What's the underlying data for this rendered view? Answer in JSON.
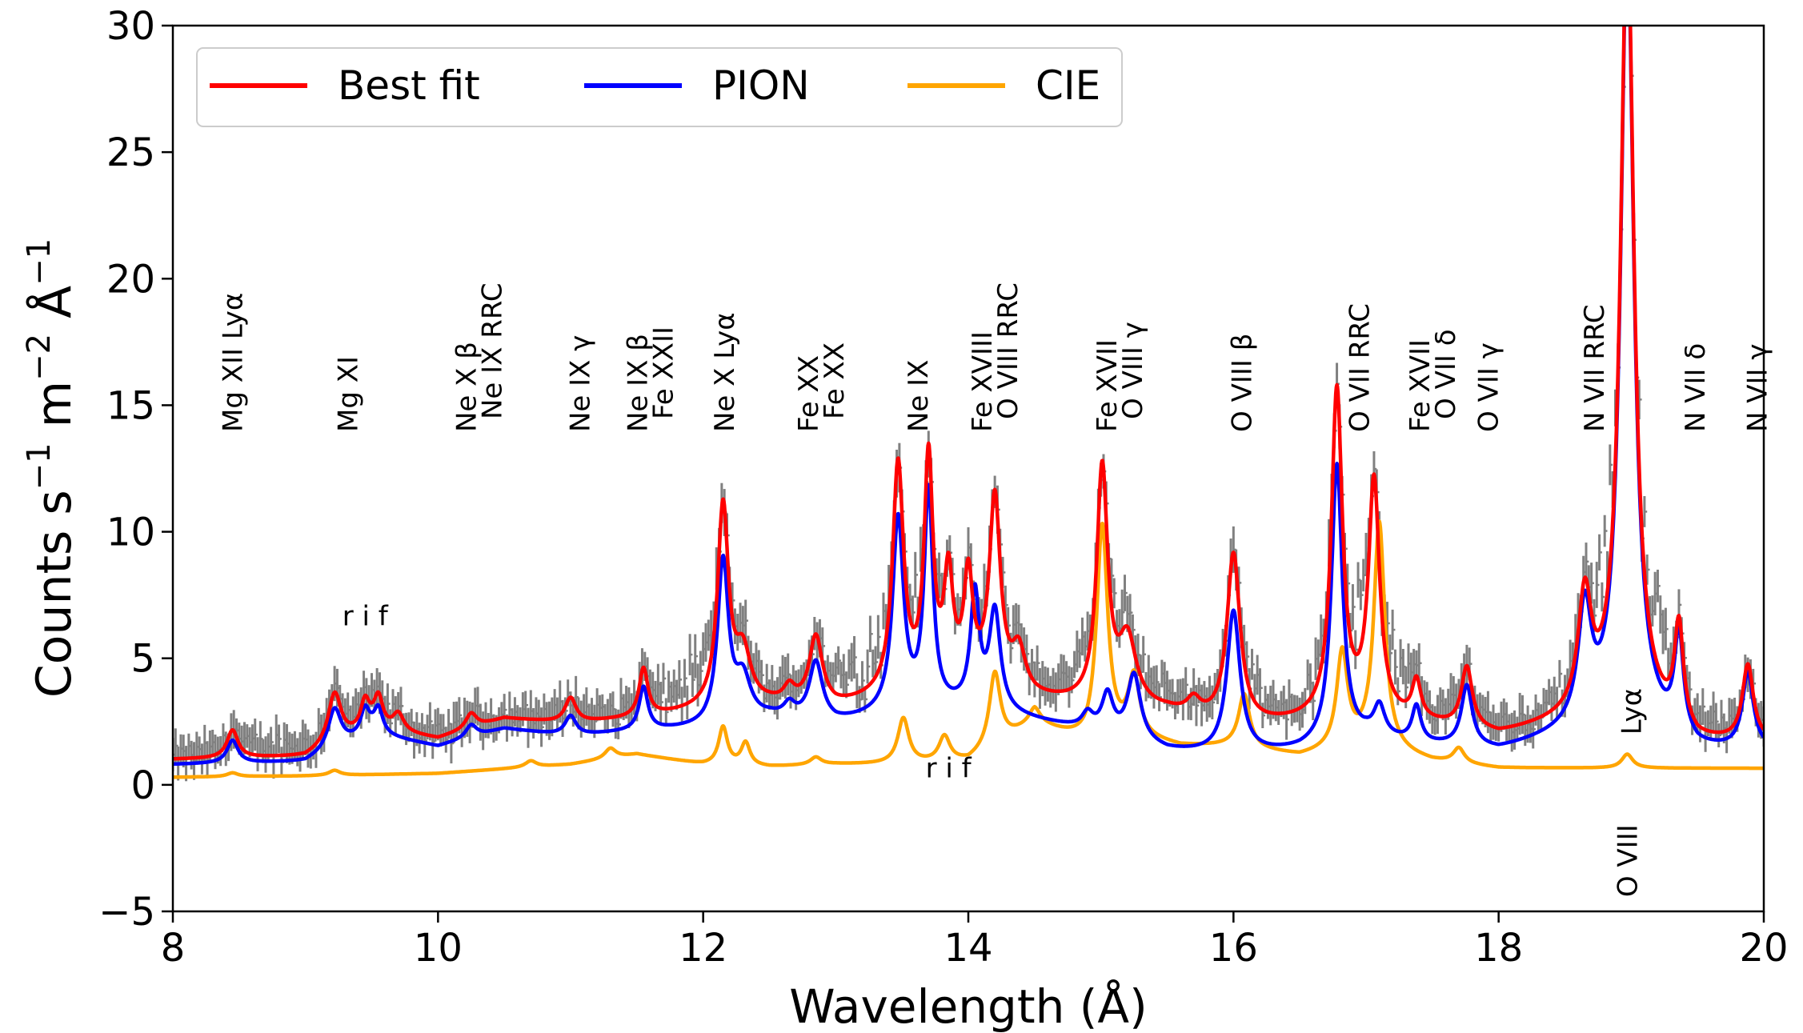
{
  "chart_data": {
    "type": "line",
    "title": "",
    "xlabel": "Wavelength (Å)",
    "ylabel_parts": [
      "Counts s",
      "−1",
      " m",
      "−2",
      " Å",
      "−1"
    ],
    "xlim": [
      8,
      20
    ],
    "ylim": [
      -5,
      30
    ],
    "xticks": [
      8,
      10,
      12,
      14,
      16,
      18,
      20
    ],
    "yticks": [
      -5,
      0,
      5,
      10,
      15,
      20,
      25,
      30
    ],
    "ytick_labels": [
      "−5",
      "0",
      "5",
      "10",
      "15",
      "20",
      "25",
      "30"
    ],
    "grid": false,
    "legend": {
      "position": "top-left",
      "entries": [
        {
          "label": "Best fit",
          "color": "#ff0000"
        },
        {
          "label": "PION",
          "color": "#0000ff"
        },
        {
          "label": "CIE",
          "color": "#ffa500"
        }
      ]
    },
    "data_color": "#808080",
    "line_ids": [
      {
        "x": 8.45,
        "lines": [
          "Mg XII Lyα"
        ]
      },
      {
        "x": 9.32,
        "lines": [
          "Mg XI"
        ]
      },
      {
        "x": 10.31,
        "lines": [
          "Ne X β",
          "Ne IX RRC"
        ]
      },
      {
        "x": 11.07,
        "lines": [
          "Ne IX γ"
        ]
      },
      {
        "x": 11.6,
        "lines": [
          "Ne IX β",
          "Fe XXII"
        ]
      },
      {
        "x": 12.16,
        "lines": [
          "Ne X Lyα"
        ]
      },
      {
        "x": 12.89,
        "lines": [
          "Fe XX",
          "Fe XX"
        ]
      },
      {
        "x": 13.62,
        "lines": [
          "Ne IX"
        ]
      },
      {
        "x": 14.2,
        "lines": [
          "Fe XVIII",
          "O VIII RRC"
        ]
      },
      {
        "x": 15.14,
        "lines": [
          "Fe XVII",
          "O VIII γ"
        ]
      },
      {
        "x": 16.06,
        "lines": [
          "O VIII β"
        ]
      },
      {
        "x": 16.95,
        "lines": [
          "O VII RRC"
        ]
      },
      {
        "x": 17.5,
        "lines": [
          "Fe XVII",
          "O VII δ"
        ]
      },
      {
        "x": 17.92,
        "lines": [
          "O VII γ"
        ]
      },
      {
        "x": 18.72,
        "lines": [
          "N VII RRC"
        ]
      },
      {
        "x": 19.48,
        "lines": [
          "N VII δ"
        ]
      },
      {
        "x": 19.95,
        "lines": [
          "N VII γ"
        ]
      }
    ],
    "annotations": [
      {
        "text": "r i f",
        "x": 9.45,
        "y": 6.3
      },
      {
        "text": "r i f",
        "x": 13.85,
        "y": 0.3
      },
      {
        "text": "O VIII",
        "x": 18.97,
        "y": -3.0,
        "rotated": true
      },
      {
        "text": "Lyα",
        "x": 19.0,
        "y": 2.9,
        "rotated": true
      }
    ],
    "series": [
      {
        "name": "Best fit",
        "color": "#ff0000",
        "baseline": [
          [
            8.0,
            1.0
          ],
          [
            9.0,
            1.1
          ],
          [
            9.5,
            2.2
          ],
          [
            10.0,
            1.8
          ],
          [
            10.5,
            2.6
          ],
          [
            11.0,
            2.4
          ],
          [
            11.5,
            2.6
          ],
          [
            12.0,
            2.9
          ],
          [
            12.5,
            3.1
          ],
          [
            13.0,
            3.0
          ],
          [
            13.5,
            3.5
          ],
          [
            14.0,
            4.0
          ],
          [
            14.5,
            3.3
          ],
          [
            15.0,
            3.0
          ],
          [
            15.5,
            2.8
          ],
          [
            16.0,
            2.2
          ],
          [
            16.5,
            2.4
          ],
          [
            17.0,
            2.6
          ],
          [
            17.5,
            2.3
          ],
          [
            18.0,
            1.9
          ],
          [
            18.5,
            2.4
          ],
          [
            19.0,
            3.0
          ],
          [
            19.5,
            1.6
          ],
          [
            20.0,
            1.6
          ]
        ],
        "peaks": [
          [
            8.45,
            1.1,
            0.05
          ],
          [
            9.22,
            2.0,
            0.06
          ],
          [
            9.45,
            1.1,
            0.04
          ],
          [
            9.55,
            1.2,
            0.04
          ],
          [
            9.7,
            0.7,
            0.05
          ],
          [
            10.25,
            0.6,
            0.05
          ],
          [
            11.0,
            1.0,
            0.05
          ],
          [
            11.55,
            1.9,
            0.04
          ],
          [
            12.15,
            7.9,
            0.05
          ],
          [
            12.3,
            2.0,
            0.07
          ],
          [
            12.65,
            0.6,
            0.05
          ],
          [
            12.85,
            2.7,
            0.06
          ],
          [
            13.47,
            9.0,
            0.05
          ],
          [
            13.7,
            8.9,
            0.04
          ],
          [
            13.85,
            4.1,
            0.04
          ],
          [
            14.0,
            3.9,
            0.04
          ],
          [
            14.2,
            7.4,
            0.05
          ],
          [
            14.38,
            1.6,
            0.06
          ],
          [
            15.01,
            9.3,
            0.05
          ],
          [
            15.2,
            2.6,
            0.08
          ],
          [
            15.7,
            0.6,
            0.06
          ],
          [
            16.0,
            6.8,
            0.06
          ],
          [
            16.78,
            12.9,
            0.05
          ],
          [
            17.06,
            9.2,
            0.05
          ],
          [
            17.38,
            1.5,
            0.04
          ],
          [
            17.76,
            2.4,
            0.05
          ],
          [
            18.65,
            4.5,
            0.06
          ],
          [
            18.97,
            31.0,
            0.06
          ],
          [
            19.36,
            3.9,
            0.04
          ],
          [
            19.88,
            3.0,
            0.05
          ]
        ]
      },
      {
        "name": "PION",
        "color": "#0000ff",
        "baseline": [
          [
            8.0,
            0.8
          ],
          [
            9.0,
            0.9
          ],
          [
            9.5,
            2.0
          ],
          [
            10.0,
            1.5
          ],
          [
            10.5,
            2.2
          ],
          [
            11.0,
            1.9
          ],
          [
            11.5,
            2.1
          ],
          [
            12.0,
            2.2
          ],
          [
            12.5,
            2.6
          ],
          [
            13.0,
            2.4
          ],
          [
            13.5,
            2.8
          ],
          [
            14.0,
            3.0
          ],
          [
            14.5,
            2.5
          ],
          [
            15.0,
            2.0
          ],
          [
            15.5,
            1.3
          ],
          [
            16.0,
            1.1
          ],
          [
            16.5,
            1.3
          ],
          [
            17.0,
            1.8
          ],
          [
            17.5,
            1.5
          ],
          [
            18.0,
            1.3
          ],
          [
            18.5,
            1.9
          ],
          [
            19.0,
            2.5
          ],
          [
            19.5,
            1.3
          ],
          [
            20.0,
            1.3
          ]
        ],
        "peaks": [
          [
            8.45,
            0.9,
            0.05
          ],
          [
            9.22,
            1.6,
            0.06
          ],
          [
            9.45,
            1.0,
            0.04
          ],
          [
            9.55,
            1.0,
            0.04
          ],
          [
            10.25,
            0.5,
            0.05
          ],
          [
            11.0,
            0.8,
            0.05
          ],
          [
            11.55,
            1.7,
            0.04
          ],
          [
            12.15,
            6.4,
            0.05
          ],
          [
            12.3,
            1.6,
            0.07
          ],
          [
            12.65,
            0.5,
            0.05
          ],
          [
            12.85,
            2.3,
            0.06
          ],
          [
            13.47,
            7.6,
            0.05
          ],
          [
            13.7,
            8.5,
            0.04
          ],
          [
            14.05,
            4.4,
            0.04
          ],
          [
            14.2,
            3.9,
            0.05
          ],
          [
            14.9,
            0.6,
            0.05
          ],
          [
            15.05,
            1.5,
            0.05
          ],
          [
            15.25,
            2.6,
            0.06
          ],
          [
            16.0,
            5.7,
            0.06
          ],
          [
            16.78,
            11.0,
            0.05
          ],
          [
            17.1,
            1.2,
            0.05
          ],
          [
            17.38,
            1.4,
            0.04
          ],
          [
            17.76,
            2.4,
            0.05
          ],
          [
            18.65,
            4.5,
            0.06
          ],
          [
            18.97,
            31.0,
            0.06
          ],
          [
            19.36,
            3.9,
            0.04
          ],
          [
            19.88,
            3.0,
            0.05
          ]
        ]
      },
      {
        "name": "CIE",
        "color": "#ffa500",
        "baseline": [
          [
            8.0,
            0.3
          ],
          [
            9.0,
            0.35
          ],
          [
            10.0,
            0.45
          ],
          [
            11.0,
            0.8
          ],
          [
            11.5,
            1.2
          ],
          [
            12.0,
            0.8
          ],
          [
            12.5,
            0.7
          ],
          [
            13.0,
            0.8
          ],
          [
            13.5,
            0.8
          ],
          [
            14.0,
            0.9
          ],
          [
            14.5,
            2.4
          ],
          [
            14.9,
            1.6
          ],
          [
            15.2,
            1.9
          ],
          [
            15.6,
            1.5
          ],
          [
            16.0,
            1.5
          ],
          [
            16.5,
            1.1
          ],
          [
            17.0,
            1.5
          ],
          [
            17.5,
            0.9
          ],
          [
            18.0,
            0.65
          ],
          [
            19.0,
            0.65
          ],
          [
            20.0,
            0.65
          ]
        ],
        "peaks": [
          [
            8.45,
            0.15,
            0.05
          ],
          [
            9.22,
            0.2,
            0.05
          ],
          [
            10.7,
            0.25,
            0.05
          ],
          [
            11.3,
            0.4,
            0.05
          ],
          [
            12.15,
            1.5,
            0.04
          ],
          [
            12.32,
            0.9,
            0.04
          ],
          [
            12.85,
            0.3,
            0.05
          ],
          [
            13.51,
            1.8,
            0.05
          ],
          [
            13.82,
            1.0,
            0.05
          ],
          [
            14.2,
            2.9,
            0.05
          ],
          [
            14.5,
            0.5,
            0.05
          ],
          [
            15.01,
            8.5,
            0.05
          ],
          [
            15.25,
            2.3,
            0.05
          ],
          [
            16.08,
            2.1,
            0.05
          ],
          [
            16.82,
            3.8,
            0.05
          ],
          [
            17.1,
            8.9,
            0.05
          ],
          [
            17.7,
            0.6,
            0.05
          ],
          [
            18.97,
            0.55,
            0.05
          ]
        ]
      }
    ],
    "observed_envelope": [
      [
        8.0,
        1.3
      ],
      [
        8.45,
        2.6
      ],
      [
        9.22,
        4.3
      ],
      [
        9.5,
        3.5
      ],
      [
        10.0,
        2.3
      ],
      [
        10.5,
        3.2
      ],
      [
        11.0,
        3.3
      ],
      [
        11.55,
        4.5
      ],
      [
        12.15,
        11.5
      ],
      [
        12.5,
        3.7
      ],
      [
        12.85,
        5.8
      ],
      [
        13.47,
        13.5
      ],
      [
        13.7,
        13.0
      ],
      [
        14.0,
        8.6
      ],
      [
        14.2,
        11.2
      ],
      [
        14.6,
        4.5
      ],
      [
        15.01,
        13.0
      ],
      [
        15.3,
        7.4
      ],
      [
        15.8,
        2.8
      ],
      [
        16.0,
        9.7
      ],
      [
        16.5,
        3.2
      ],
      [
        16.78,
        15.5
      ],
      [
        17.06,
        14.7
      ],
      [
        17.5,
        3.8
      ],
      [
        17.76,
        5.2
      ],
      [
        18.2,
        2.5
      ],
      [
        18.65,
        8.7
      ],
      [
        18.97,
        30
      ],
      [
        19.36,
        5.3
      ],
      [
        19.88,
        4.5
      ],
      [
        20.0,
        2.0
      ]
    ]
  }
}
